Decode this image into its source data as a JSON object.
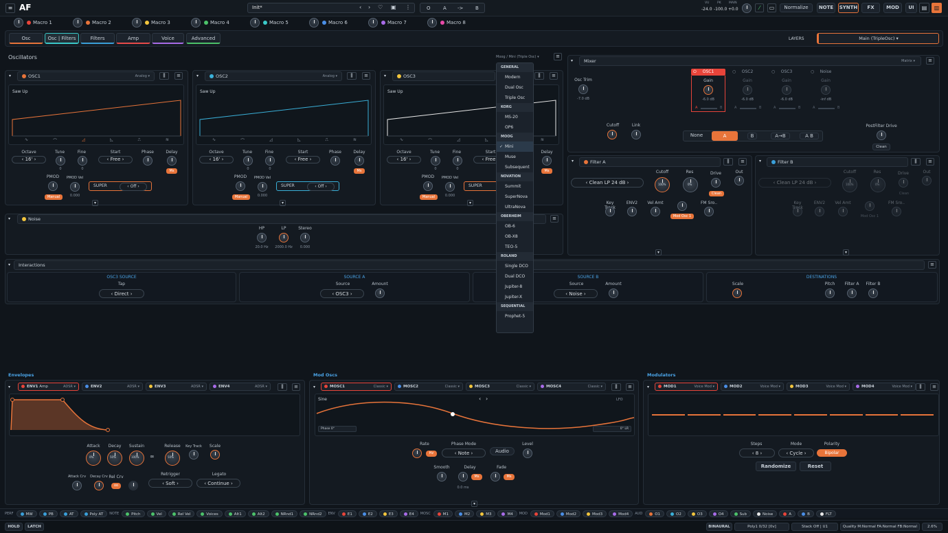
{
  "app": {
    "logo": "AF",
    "preset_name": "Init*",
    "ab": {
      "o": "O",
      "a": "A",
      "arrow": "->",
      "b": "B"
    },
    "meters": {
      "vu_label": "VU",
      "pk_label": "PK",
      "main_label": "MAIN",
      "vu": "-24.0",
      "pk": "-100.0",
      "main": "+0.0"
    },
    "normalize": "Normalize",
    "modes": [
      "NOTE",
      "SYNTH",
      "FX",
      "MOD",
      "UI"
    ]
  },
  "macros": [
    {
      "label": "Macro 1",
      "color": "#e8443a"
    },
    {
      "label": "Macro 2",
      "color": "#e8743a"
    },
    {
      "label": "Macro 3",
      "color": "#f2c53d"
    },
    {
      "label": "Macro 4",
      "color": "#4cc26a"
    },
    {
      "label": "Macro 5",
      "color": "#3ac9c9"
    },
    {
      "label": "Macro 6",
      "color": "#4a8ee6"
    },
    {
      "label": "Macro 7",
      "color": "#a86be8"
    },
    {
      "label": "Macro 8",
      "color": "#e84aa8"
    }
  ],
  "tabs": [
    "Osc",
    "Osc | Filters",
    "Filters",
    "Amp",
    "Voice",
    "Advanced"
  ],
  "layers": {
    "label": "LAYERS",
    "value": "Main (TripleOsc)"
  },
  "oscillators": {
    "title": "Oscillators",
    "model": "Moog / Mini (Triple Osc)",
    "items": [
      {
        "name": "OSC1",
        "type": "Analog",
        "wave": "Saw Up",
        "color": "#e8743a",
        "octave": "16'",
        "tune": "0",
        "fine": "0",
        "start": "Free",
        "phase": "",
        "delay": "Ms",
        "pmod": "Manual",
        "pmod_vel": "0.000",
        "super": "SUPER",
        "super_val": "Off"
      },
      {
        "name": "OSC2",
        "type": "Analog",
        "wave": "Saw Up",
        "color": "#3ab0d9",
        "octave": "16'",
        "tune": "0",
        "fine": "0",
        "start": "Free",
        "phase": "",
        "delay": "Ms",
        "pmod": "Manual",
        "pmod_vel": "0.000",
        "super": "SUPER",
        "super_val": "Off"
      },
      {
        "name": "OSC3",
        "type": "",
        "wave": "Saw Up",
        "color": "#f2c53d",
        "octave": "16'",
        "tune": "0",
        "fine": "0",
        "start": "Free",
        "phase": "",
        "delay": "Ms",
        "pmod": "Manual",
        "pmod_vel": "0.000",
        "super": "SUPER",
        "super_val": ""
      }
    ],
    "labels": {
      "octave": "Octave",
      "tune": "Tune",
      "fine": "Fine",
      "start": "Start",
      "phase": "Phase",
      "delay": "Delay",
      "pmod": "PMOD",
      "pmod_vel": "PMOD Vel"
    }
  },
  "noise": {
    "title": "Noise",
    "hp": "HP",
    "lp": "LP",
    "stereo": "Stereo",
    "hp_val": "20.0 Hz",
    "lp_val": "2000.0 Hz",
    "stereo_val": "0.000"
  },
  "dropdown": {
    "groups": [
      {
        "header": "GENERAL",
        "items": [
          "Modern",
          "Dual Osc",
          "Triple Osc"
        ]
      },
      {
        "header": "KORG",
        "items": [
          "MS-20",
          "OP6"
        ]
      },
      {
        "header": "MOOG",
        "items": [
          "Mini",
          "Muse",
          "Subsequent"
        ]
      },
      {
        "header": "NOVATION",
        "items": [
          "Summit",
          "SuperNova",
          "UltraNova"
        ]
      },
      {
        "header": "OBERHEIM",
        "items": [
          "OB-6",
          "OB-X8",
          "TEO-5"
        ]
      },
      {
        "header": "ROLAND",
        "items": [
          "Single DCO",
          "Dual DCO",
          "Jupiter-8",
          "Jupiter-X"
        ]
      },
      {
        "header": "SEQUENTIAL",
        "items": [
          "Prophet-5"
        ]
      }
    ],
    "selected": "Mini"
  },
  "mixer": {
    "title": "Mixer",
    "mode": "Matrix",
    "osc_trim": "Osc Trim",
    "osc_trim_val": "-7.0 dB",
    "gain": "Gain",
    "channels": [
      {
        "name": "OSC1",
        "val": "-6.0 dB"
      },
      {
        "name": "OSC2",
        "val": "-6.0 dB"
      },
      {
        "name": "OSC3",
        "val": "-6.0 dB"
      },
      {
        "name": "Noise",
        "val": "-inf dB"
      }
    ],
    "a": "A",
    "b": "B",
    "cutoff": "Cutoff",
    "link": "Link",
    "routing": [
      "None",
      "A",
      "B",
      "A→B",
      "A B"
    ],
    "postfilter": "PostFilter Drive",
    "clean": "Clean"
  },
  "filters": [
    {
      "title": "Filter A",
      "mode": "Clean",
      "slope": "LP 24 dB",
      "cutoff": "Cutoff",
      "cutoff_val": "100%",
      "res": "Res",
      "res_val": "0%",
      "drive": "Drive",
      "drive_val": "Clean",
      "out": "Out",
      "keytrack": "Key Track",
      "env2": "ENV2",
      "velamt": "Vel Amt",
      "fmsrc": "FM Sro..",
      "fm_btn": "Mod Osc 1"
    },
    {
      "title": "Filter B",
      "mode": "Clean",
      "slope": "LP 24 dB",
      "cutoff": "Cutoff",
      "cutoff_val": "100%",
      "res": "Res",
      "res_val": "0%",
      "drive": "Drive",
      "drive_val": "Clean",
      "out": "Out",
      "keytrack": "Key Track",
      "env2": "ENV2",
      "velamt": "Vel Amt",
      "fmsrc": "FM Sro..",
      "fm_btn": "Mod Osc 1"
    }
  ],
  "interactions": {
    "title": "Interactions",
    "osc3_source": {
      "title": "OSC3 SOURCE",
      "label": "Tap",
      "value": "Direct"
    },
    "source_a": {
      "title": "SOURCE A",
      "source": "Source",
      "value": "OSC3",
      "amount": "Amount"
    },
    "source_b": {
      "title": "SOURCE B",
      "source": "Source",
      "value": "Noise",
      "amount": "Amount"
    },
    "destinations": {
      "title": "DESTINATIONS",
      "scale": "Scale",
      "pitch": "Pitch",
      "filter_a": "Filter A",
      "filter_b": "Filter B"
    }
  },
  "envelopes": {
    "title": "Envelopes",
    "items": [
      {
        "name": "ENV1",
        "sub": "Amp",
        "type": "ADSR",
        "color": "#e8443a"
      },
      {
        "name": "ENV2",
        "sub": "",
        "type": "ADSR",
        "color": "#4a8ee6"
      },
      {
        "name": "ENV3",
        "sub": "",
        "type": "ADSR",
        "color": "#f2c53d"
      },
      {
        "name": "ENV4",
        "sub": "",
        "type": "ADSR",
        "color": "#a86be8"
      }
    ],
    "knobs": {
      "attack": "Attack",
      "decay": "Decay",
      "sustain": "Sustain",
      "release": "Release",
      "keytrack": "Key Track",
      "scale": "Scale",
      "attack_crv": "Attack Crv",
      "decay_crv": "Decay Crv",
      "rel_crv": "Rel Crv",
      "retrigger": "Retrigger",
      "retrigger_val": "Soft",
      "legato": "Legato",
      "legato_val": "Continue",
      "attack_val": "0%",
      "decay_val": "50%",
      "sustain_val": "100%",
      "release_val": "50%"
    }
  },
  "modoscs": {
    "title": "Mod Oscs",
    "items": [
      {
        "name": "MOSC1",
        "type": "Classic",
        "color": "#e8443a"
      },
      {
        "name": "MOSC2",
        "type": "Classic",
        "color": "#4a8ee6"
      },
      {
        "name": "MOSC3",
        "type": "Classic",
        "color": "#f2c53d"
      },
      {
        "name": "MOSC4",
        "type": "Classic",
        "color": "#a86be8"
      }
    ],
    "wave": "Sine",
    "lfo": "LFO",
    "phase_label": "Phase",
    "phase": "0°",
    "phase_right": "0°",
    "phase_tag": "LR",
    "rate": "Rate",
    "rate_unit": "Hz",
    "phase_mode": "Phase Mode",
    "phase_mode_val": "Note",
    "audio": "Audio",
    "level": "Level",
    "smooth": "Smooth",
    "delay": "Delay",
    "delay_unit": "Ms",
    "delay_val": "0.0 ms",
    "fade": "Fade",
    "fade_unit": "Ms"
  },
  "modulators": {
    "title": "Modulators",
    "items": [
      {
        "name": "MOD1",
        "type": "Voice Mod",
        "color": "#e8443a"
      },
      {
        "name": "MOD2",
        "type": "Voice Mod",
        "color": "#4a8ee6"
      },
      {
        "name": "MOD3",
        "type": "Voice Mod",
        "color": "#f2c53d"
      },
      {
        "name": "MOD4",
        "type": "Voice Mod",
        "color": "#a86be8"
      }
    ],
    "steps": "Steps",
    "steps_val": "8",
    "mode": "Mode",
    "mode_val": "Cycle",
    "polarity": "Polarity",
    "polarity_val": "Bipolar",
    "randomize": "Randomize",
    "reset": "Reset",
    "step_count": 8
  },
  "bottombar": {
    "perf": "PERF",
    "perf_items": [
      "MW",
      "PB",
      "AT",
      "Poly AT"
    ],
    "note": "NOTE",
    "note_items": [
      "Pitch",
      "Vel",
      "Rel Vel",
      "Voices",
      "Alt1",
      "Alt2",
      "NRnd1",
      "NRnd2"
    ],
    "env": "ENV",
    "env_items": [
      "E1",
      "E2",
      "E3",
      "E4"
    ],
    "mosc": "MOSC",
    "mosc_items": [
      "M1",
      "M2",
      "M3",
      "M4"
    ],
    "mod": "MOD",
    "mod_items": [
      "Mod1",
      "Mod2",
      "Mod3",
      "Mod4"
    ],
    "aud": "AUD",
    "aud_items": [
      "O1",
      "O2",
      "O3",
      "O4",
      "Sub",
      "Noise",
      "A",
      "B",
      "FLT"
    ]
  },
  "statusbar": {
    "hold": "HOLD",
    "latch": "LATCH",
    "binaural": "BINAURAL",
    "poly": "Poly1 0/32 [0v]",
    "stack": "Stack Off | U1",
    "quality": "Quality M:Normal FA:Normal FB:Normal",
    "cpu": "2.6%"
  }
}
